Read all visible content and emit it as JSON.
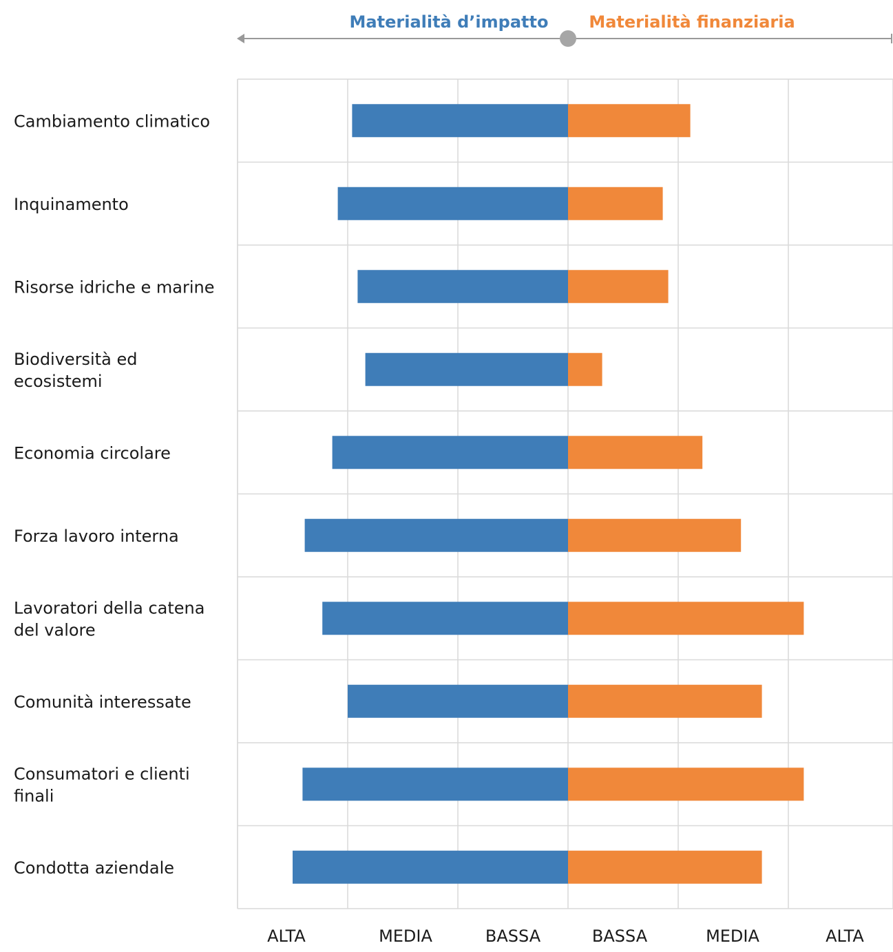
{
  "chart_data": {
    "type": "bar",
    "orientation": "horizontal-diverging",
    "left_header": "Materialità d’impatto",
    "right_header": "Materialità finanziaria",
    "categories": [
      [
        "Cambiamento climatico"
      ],
      [
        "Inquinamento"
      ],
      [
        "Risorse idriche e marine"
      ],
      [
        "Biodiversità ed",
        "ecosistemi"
      ],
      [
        "Economia circolare"
      ],
      [
        "Forza lavoro interna"
      ],
      [
        "Lavoratori della catena",
        "del valore"
      ],
      [
        "Comunità interessate"
      ],
      [
        "Consumatori e clienti",
        "finali"
      ],
      [
        "Condotta aziendale"
      ]
    ],
    "series": [
      {
        "name": "Materialità d’impatto",
        "color": "#3f7db8",
        "values": [
          1.96,
          2.09,
          1.91,
          1.84,
          2.14,
          2.39,
          2.23,
          2.0,
          2.41,
          2.5
        ]
      },
      {
        "name": "Materialità finanziaria",
        "color": "#f0883a",
        "values": [
          1.11,
          0.86,
          0.91,
          0.31,
          1.22,
          1.57,
          2.14,
          1.76,
          2.14,
          1.76
        ]
      }
    ],
    "left_tick_labels": [
      "ALTA",
      "MEDIA",
      "BASSA"
    ],
    "right_tick_labels": [
      "BASSA",
      "MEDIA",
      "ALTA"
    ],
    "xlim": [
      0,
      3
    ],
    "grid": true
  }
}
